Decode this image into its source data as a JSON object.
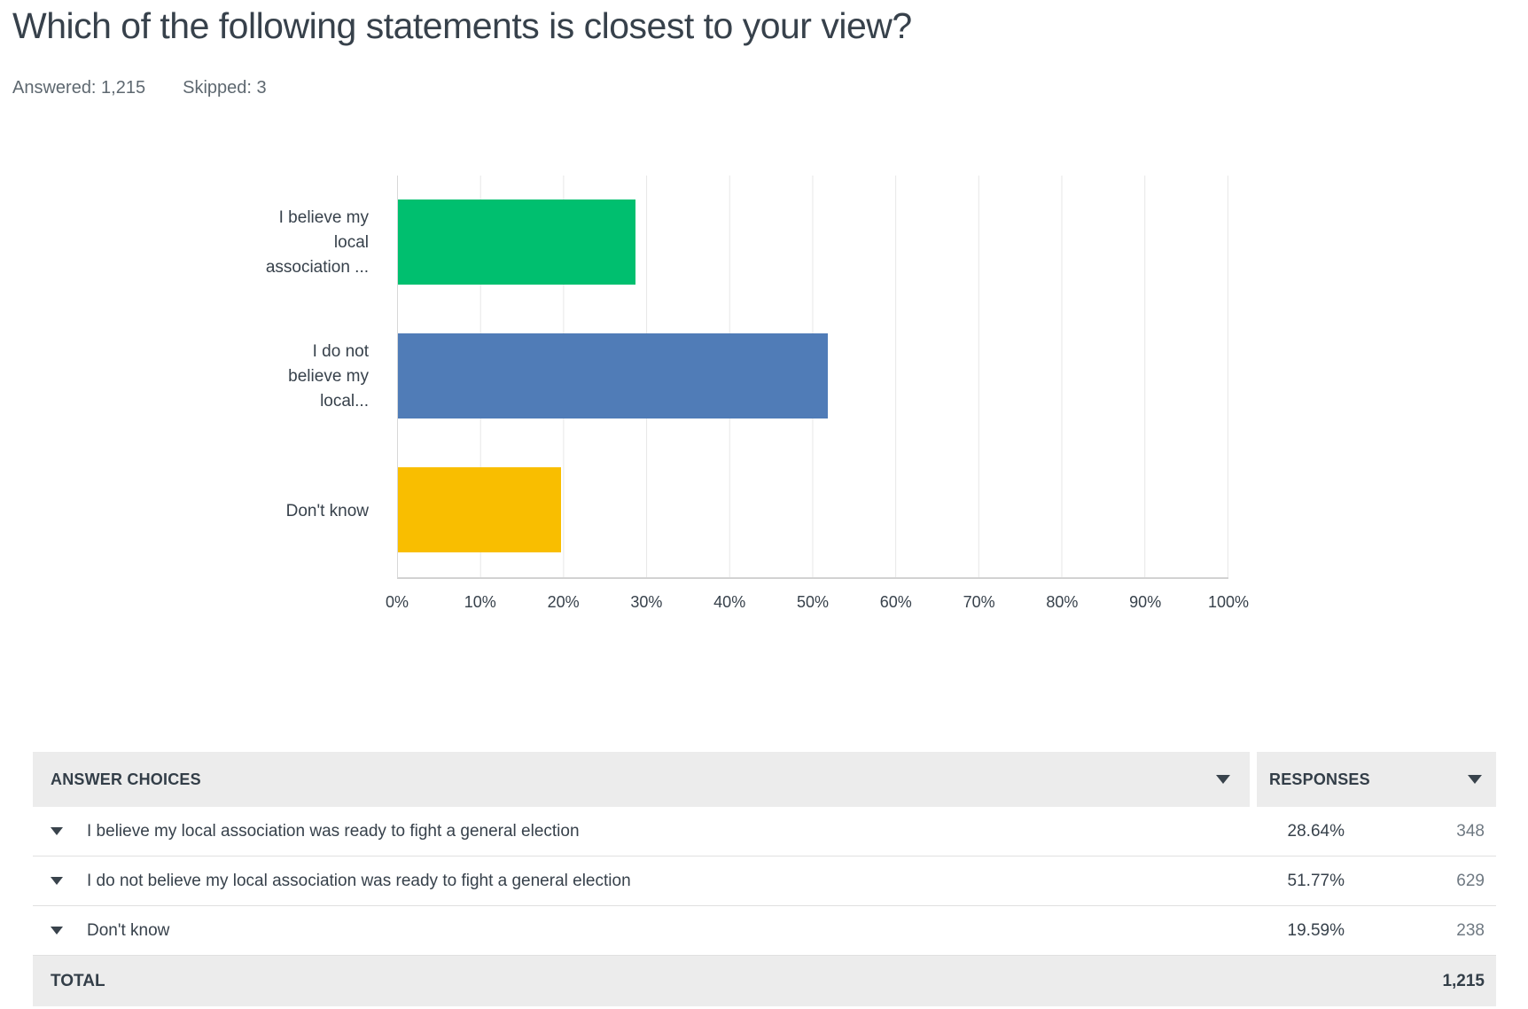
{
  "page": {
    "title": "Which of the following statements is closest to your view?",
    "answered": "Answered: 1,215",
    "skipped": "Skipped: 3"
  },
  "chart_data": {
    "type": "bar",
    "orientation": "horizontal",
    "title": "",
    "xlabel": "",
    "ylabel": "",
    "xlim": [
      0,
      100
    ],
    "grid": true,
    "legend": false,
    "categories": [
      "I believe my local association was ready to fight a general election",
      "I do not believe my local association was ready to fight a general election",
      "Don't know"
    ],
    "values": [
      28.64,
      51.77,
      19.59
    ],
    "bars": [
      {
        "label_lines": [
          "I believe my",
          "local",
          "association ..."
        ],
        "value": 28.64,
        "color": "#00BF6F"
      },
      {
        "label_lines": [
          "I do not",
          "believe my",
          "local..."
        ],
        "value": 51.77,
        "color": "#507CB7"
      },
      {
        "label_lines": [
          "Don't know"
        ],
        "value": 19.59,
        "color": "#F9BE00"
      }
    ],
    "xticks": [
      "0%",
      "10%",
      "20%",
      "30%",
      "40%",
      "50%",
      "60%",
      "70%",
      "80%",
      "90%",
      "100%"
    ]
  },
  "table": {
    "headers": {
      "answer_choices": "ANSWER CHOICES",
      "responses": "RESPONSES"
    },
    "rows": [
      {
        "answer": "I believe my local association was ready to fight a general election",
        "percent": "28.64%",
        "count": "348"
      },
      {
        "answer": "I do not believe my local association was ready to fight a general election",
        "percent": "51.77%",
        "count": "629"
      },
      {
        "answer": "Don't know",
        "percent": "19.59%",
        "count": "238"
      }
    ],
    "total": {
      "label": "TOTAL",
      "value": "1,215"
    }
  },
  "colors": {
    "bar_green": "#00BF6F",
    "bar_blue": "#507CB7",
    "bar_yellow": "#F9BE00",
    "header_bg": "#ECECEC",
    "text_dark": "#37414B",
    "count_gray": "#6F7982"
  }
}
